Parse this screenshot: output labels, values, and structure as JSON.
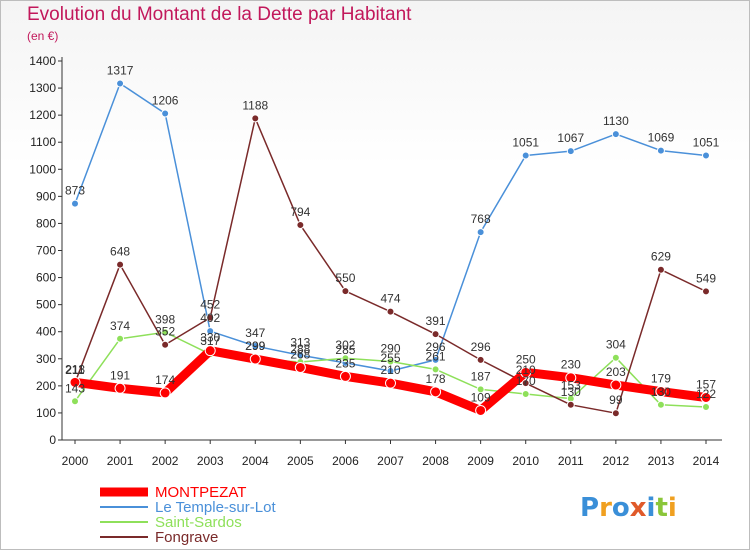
{
  "chart_data": {
    "type": "line",
    "title": "Evolution du Montant de la Dette par Habitant",
    "subtitle": "(en €)",
    "x": [
      "2000",
      "2001",
      "2002",
      "2003",
      "2004",
      "2005",
      "2006",
      "2007",
      "2008",
      "2009",
      "2010",
      "2011",
      "2012",
      "2013",
      "2014"
    ],
    "ylim": [
      0,
      1400
    ],
    "yticks": [
      0,
      100,
      200,
      300,
      400,
      500,
      600,
      700,
      800,
      900,
      1000,
      1100,
      1200,
      1300,
      1400
    ],
    "grid": false,
    "legend_position": "bottom-left",
    "series": [
      {
        "name": "MONTPEZAT",
        "color": "#ff0000",
        "values": [
          213,
          191,
          174,
          330,
          299,
          268,
          235,
          210,
          178,
          109,
          250,
          230,
          203,
          179,
          157
        ]
      },
      {
        "name": "Le Temple-sur-Lot",
        "color": "#4a90d9",
        "values": [
          873,
          1317,
          1206,
          402,
          347,
          313,
          285,
          255,
          296,
          768,
          1051,
          1067,
          1130,
          1069,
          1051
        ]
      },
      {
        "name": "Saint-Sardos",
        "color": "#8ee05a",
        "values": [
          143,
          374,
          398,
          317,
          299,
          288,
          302,
          290,
          261,
          187,
          170,
          153,
          304,
          130,
          122
        ]
      },
      {
        "name": "Fongrave",
        "color": "#7a2a2a",
        "values": [
          211,
          648,
          352,
          452,
          1188,
          794,
          550,
          474,
          391,
          296,
          210,
          130,
          99,
          629,
          549
        ]
      }
    ]
  },
  "logo": {
    "text": "Proxiti"
  }
}
